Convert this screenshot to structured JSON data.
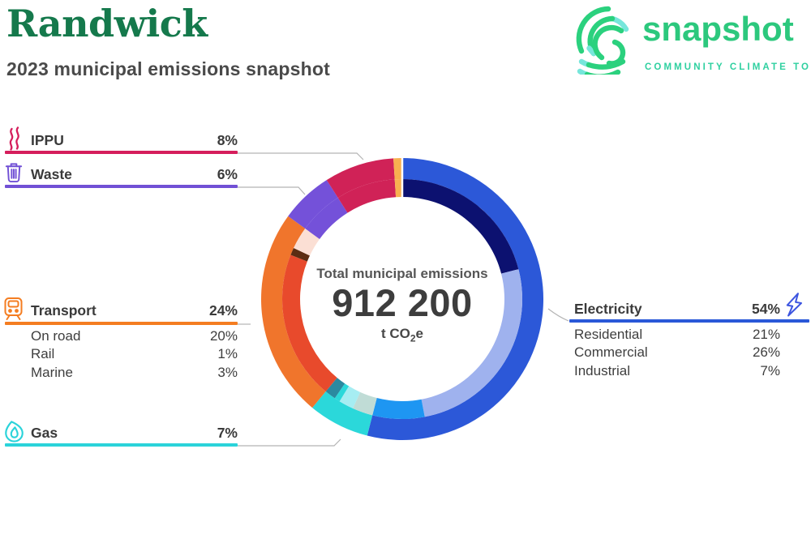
{
  "header": {
    "municipality": "Randwick",
    "subtitle": "2023 municipal emissions snapshot"
  },
  "logo": {
    "name": "snapshot",
    "tagline": "COMMUNITY CLIMATE TOOL",
    "green": "#2cc87d",
    "teal": "#77e6db"
  },
  "center": {
    "label": "Total municipal emissions",
    "value": "912 200",
    "unit_prefix": "t CO",
    "unit_sub": "2",
    "unit_suffix": "e"
  },
  "legend": {
    "ippu": {
      "label": "IPPU",
      "value": "8%",
      "color": "#d51e5c",
      "icon": "smoke-icon"
    },
    "waste": {
      "label": "Waste",
      "value": "6%",
      "color": "#7150d5",
      "icon": "trash-icon"
    },
    "transport": {
      "label": "Transport",
      "value": "24%",
      "color": "#f47d21",
      "icon": "train-icon",
      "sub": [
        {
          "label": "On road",
          "value": "20%"
        },
        {
          "label": "Rail",
          "value": "1%"
        },
        {
          "label": "Marine",
          "value": "3%"
        }
      ]
    },
    "gas": {
      "label": "Gas",
      "value": "7%",
      "color": "#2bd3da",
      "icon": "flame-icon"
    },
    "electricity": {
      "label": "Electricity",
      "value": "54%",
      "color": "#2a58d8",
      "icon": "bolt-icon",
      "sub": [
        {
          "label": "Residential",
          "value": "21%"
        },
        {
          "label": "Commercial",
          "value": "26%"
        },
        {
          "label": "Industrial",
          "value": "7%"
        }
      ]
    }
  },
  "chart_data": {
    "type": "donut",
    "title": "Total municipal emissions",
    "total_value": "912 200",
    "units": "t CO2e",
    "start_angle_deg": 0,
    "clockwise": true,
    "categories": [
      {
        "name": "Electricity",
        "percent": 54,
        "color": "#2c58d8",
        "subsectors": [
          {
            "name": "Residential",
            "percent": 21,
            "color": "#0c1170"
          },
          {
            "name": "Commercial",
            "percent": 26,
            "color": "#9fb2ee"
          },
          {
            "name": "Industrial",
            "percent": 7,
            "color": "#1e96f2"
          }
        ]
      },
      {
        "name": "Gas",
        "percent": 7,
        "color": "#2bd8da",
        "subsectors": [
          {
            "name": "",
            "percent": 2.75,
            "color": "#c0dcd6"
          },
          {
            "name": "",
            "percent": 2.0,
            "color": "#a6edf2"
          },
          {
            "name": "",
            "percent": 0.75,
            "color": "#2bd8da"
          },
          {
            "name": "",
            "percent": 1.5,
            "color": "#2b89a0"
          }
        ]
      },
      {
        "name": "Transport",
        "percent": 24,
        "color": "#f0752c",
        "subsectors": [
          {
            "name": "On road",
            "percent": 20,
            "color": "#e84a2c"
          },
          {
            "name": "Rail",
            "percent": 1,
            "color": "#5c2d13"
          },
          {
            "name": "Marine",
            "percent": 3,
            "color": "#fbdfd4"
          }
        ]
      },
      {
        "name": "Waste",
        "percent": 6,
        "color": "#7451d9"
      },
      {
        "name": "IPPU",
        "percent": 8,
        "color": "#d02257"
      },
      {
        "name": "",
        "percent": 1,
        "color": "#f8b050"
      }
    ]
  }
}
